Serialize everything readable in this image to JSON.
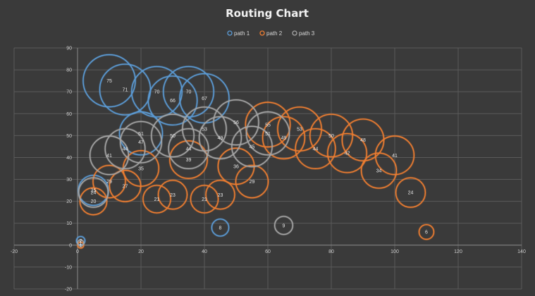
{
  "chart_data": {
    "type": "bubble",
    "title": "Routing Chart",
    "xlabel": "",
    "ylabel": "",
    "xlim": [
      -20,
      140
    ],
    "ylim": [
      -20,
      90
    ],
    "x_ticks": [
      -20,
      0,
      20,
      40,
      60,
      80,
      100,
      120,
      140
    ],
    "y_ticks": [
      -20,
      -10,
      0,
      10,
      20,
      30,
      40,
      50,
      60,
      70,
      80,
      90
    ],
    "grid": true,
    "legend_position": "top-center",
    "series": [
      {
        "name": "path 1",
        "color": "#5b9bd5",
        "points": [
          {
            "x": 1,
            "y": 2,
            "size": 2
          },
          {
            "x": 5,
            "y": 25,
            "size": 25
          },
          {
            "x": 10,
            "y": 75,
            "size": 75
          },
          {
            "x": 15,
            "y": 71,
            "size": 71
          },
          {
            "x": 20,
            "y": 51,
            "size": 51
          },
          {
            "x": 25,
            "y": 70,
            "size": 70
          },
          {
            "x": 30,
            "y": 66,
            "size": 66
          },
          {
            "x": 35,
            "y": 70,
            "size": 70
          },
          {
            "x": 40,
            "y": 67,
            "size": 67
          },
          {
            "x": 45,
            "y": 8,
            "size": 8
          }
        ]
      },
      {
        "name": "path 2",
        "color": "#ed7d31",
        "points": [
          {
            "x": 1,
            "y": 0,
            "size": 1
          },
          {
            "x": 5,
            "y": 20,
            "size": 20
          },
          {
            "x": 10,
            "y": 29,
            "size": 29
          },
          {
            "x": 15,
            "y": 27,
            "size": 27
          },
          {
            "x": 20,
            "y": 35,
            "size": 35
          },
          {
            "x": 25,
            "y": 21,
            "size": 21
          },
          {
            "x": 30,
            "y": 23,
            "size": 23
          },
          {
            "x": 35,
            "y": 39,
            "size": 39
          },
          {
            "x": 40,
            "y": 21,
            "size": 21
          },
          {
            "x": 45,
            "y": 23,
            "size": 23
          },
          {
            "x": 50,
            "y": 36,
            "size": 36
          },
          {
            "x": 55,
            "y": 29,
            "size": 29
          },
          {
            "x": 60,
            "y": 55,
            "size": 55
          },
          {
            "x": 65,
            "y": 49,
            "size": 49
          },
          {
            "x": 70,
            "y": 53,
            "size": 53
          },
          {
            "x": 75,
            "y": 44,
            "size": 44
          },
          {
            "x": 80,
            "y": 50,
            "size": 50
          },
          {
            "x": 85,
            "y": 42,
            "size": 42
          },
          {
            "x": 90,
            "y": 48,
            "size": 48
          },
          {
            "x": 95,
            "y": 34,
            "size": 34
          },
          {
            "x": 100,
            "y": 41,
            "size": 41
          },
          {
            "x": 105,
            "y": 24,
            "size": 24
          },
          {
            "x": 110,
            "y": 6,
            "size": 6
          }
        ]
      },
      {
        "name": "path 3",
        "color": "#a5a5a5",
        "points": [
          {
            "x": 1,
            "y": 1,
            "size": 1
          },
          {
            "x": 5,
            "y": 24,
            "size": 24
          },
          {
            "x": 10,
            "y": 41,
            "size": 41
          },
          {
            "x": 15,
            "y": 44,
            "size": 44
          },
          {
            "x": 20,
            "y": 47,
            "size": 47
          },
          {
            "x": 30,
            "y": 50,
            "size": 50
          },
          {
            "x": 35,
            "y": 44,
            "size": 44
          },
          {
            "x": 40,
            "y": 53,
            "size": 53
          },
          {
            "x": 45,
            "y": 49,
            "size": 49
          },
          {
            "x": 50,
            "y": 56,
            "size": 56
          },
          {
            "x": 55,
            "y": 45,
            "size": 45
          },
          {
            "x": 60,
            "y": 51,
            "size": 51
          },
          {
            "x": 65,
            "y": 9,
            "size": 9
          }
        ]
      }
    ]
  }
}
